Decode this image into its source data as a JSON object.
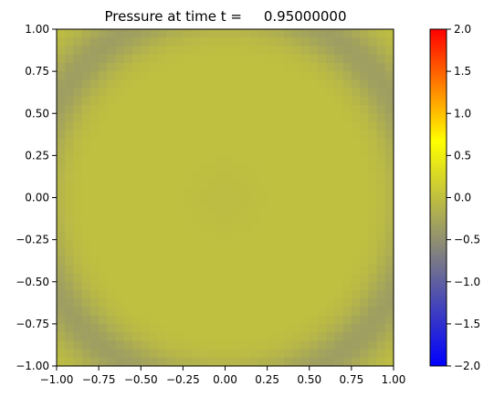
{
  "chart_data": {
    "type": "heatmap",
    "title": "Pressure at time t =     0.95000000",
    "xlabel": "",
    "ylabel": "",
    "xlim": [
      -1.0,
      1.0
    ],
    "ylim": [
      -1.0,
      1.0
    ],
    "x_ticks": [
      "−1.00",
      "−0.75",
      "−0.50",
      "−0.25",
      "0.00",
      "0.25",
      "0.50",
      "0.75",
      "1.00"
    ],
    "y_ticks": [
      "−1.00",
      "−0.75",
      "−0.50",
      "−0.25",
      "0.00",
      "0.25",
      "0.50",
      "0.75",
      "1.00"
    ],
    "grid": false,
    "grid_resolution": 40,
    "colorbar": {
      "range": [
        -2.0,
        2.0
      ],
      "ticks": [
        "−2.0",
        "−1.5",
        "−1.0",
        "−0.5",
        "0.0",
        "0.5",
        "1.0",
        "1.5",
        "2.0"
      ],
      "colors": [
        "#0000ff",
        "#808080",
        "#ffff00",
        "#ff0000"
      ]
    },
    "field_description": "pressure ≈ 0.0 across most of the domain, dipping to ≈ -0.35 along a ring near the corners (radius ≈ 1.15)"
  }
}
